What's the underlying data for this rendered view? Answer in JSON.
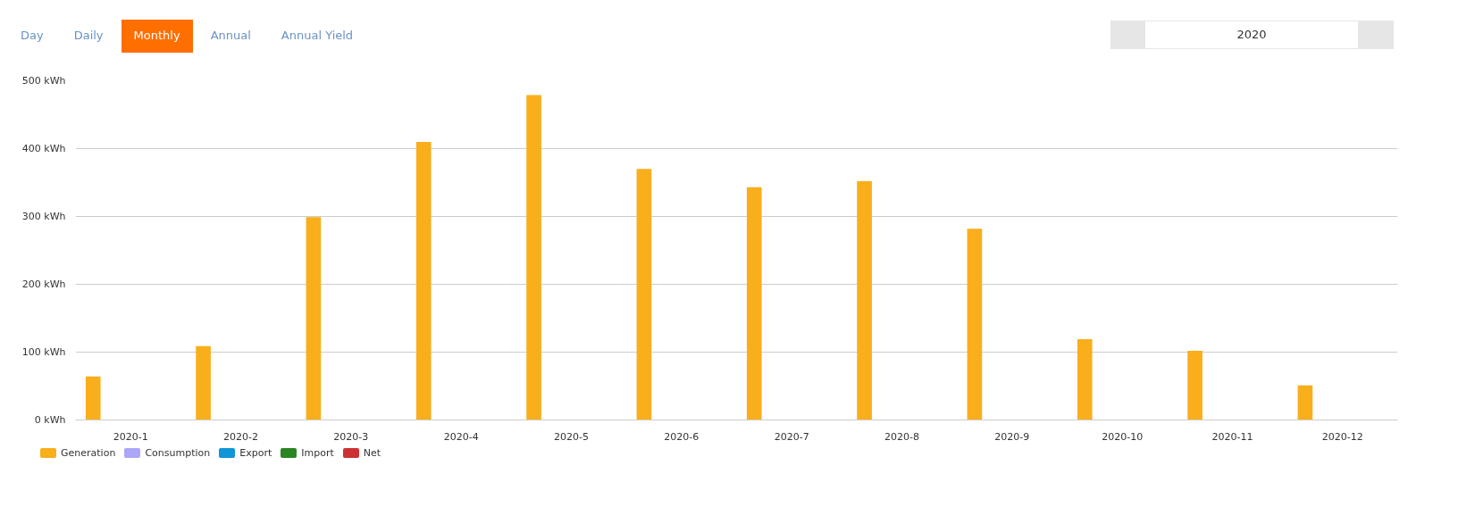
{
  "chart_data": {
    "type": "bar",
    "categories": [
      "2020-1",
      "2020-2",
      "2020-3",
      "2020-4",
      "2020-5",
      "2020-6",
      "2020-7",
      "2020-8",
      "2020-9",
      "2020-10",
      "2020-11",
      "2020-12"
    ],
    "series": [
      {
        "name": "Generation",
        "color": "#f9ae1b",
        "values": [
          64,
          109,
          299,
          410,
          479,
          370,
          343,
          352,
          282,
          119,
          102,
          51
        ]
      },
      {
        "name": "Consumption",
        "color": "#aca6f7",
        "values": [
          0,
          0,
          0,
          0,
          0,
          0,
          0,
          0,
          0,
          0,
          0,
          0
        ]
      },
      {
        "name": "Export",
        "color": "#0e96d9",
        "values": [
          0,
          0,
          0,
          0,
          0,
          0,
          0,
          0,
          0,
          0,
          0,
          0
        ]
      },
      {
        "name": "Import",
        "color": "#2a8424",
        "values": [
          0,
          0,
          0,
          0,
          0,
          0,
          0,
          0,
          0,
          0,
          0,
          0
        ]
      },
      {
        "name": "Net",
        "color": "#cc3132",
        "values": [
          0,
          0,
          0,
          0,
          0,
          0,
          0,
          0,
          0,
          0,
          0,
          0
        ]
      }
    ],
    "ylim": [
      0,
      500
    ],
    "yticks": [
      {
        "value": 0,
        "label": "0 kWh"
      },
      {
        "value": 100,
        "label": "100 kWh"
      },
      {
        "value": 200,
        "label": "200 kWh"
      },
      {
        "value": 300,
        "label": "300 kWh"
      },
      {
        "value": 400,
        "label": "400 kWh"
      },
      {
        "value": 500,
        "label": "500 kWh"
      }
    ],
    "grid": "y",
    "legend": "bottom left",
    "annotations": [
      "Day",
      "Daily",
      "Monthly",
      "Annual",
      "Annual Yield",
      "2020"
    ]
  }
}
